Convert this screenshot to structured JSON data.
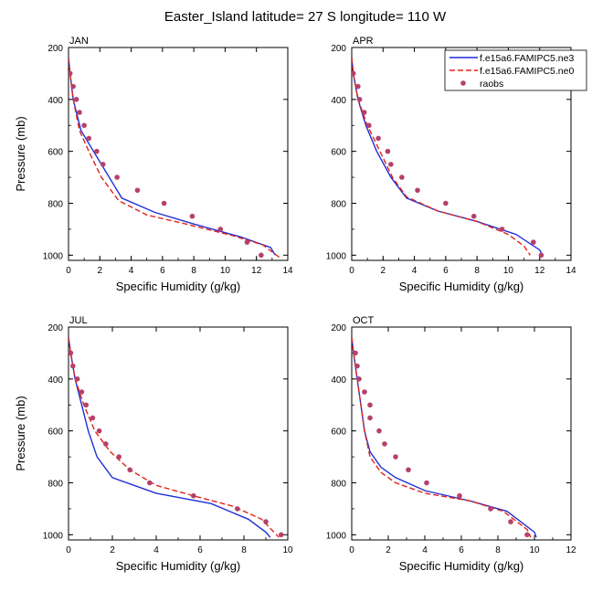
{
  "title": "Easter_Island  latitude= 27 S longitude= 110 W",
  "legend": {
    "entries": [
      {
        "label": "f.e15a6.FAMIPC5.ne3",
        "style": "line",
        "color": "#1f2fd6",
        "dash": "solid"
      },
      {
        "label": "f.e15a6.FAMIPC5.ne0",
        "style": "line",
        "color": "#e2231a",
        "dash": "dashed"
      },
      {
        "label": "raobs",
        "style": "marker",
        "color": "#b5406b"
      }
    ]
  },
  "chart_data": [
    {
      "type": "line",
      "panel": "JAN",
      "xlabel": "Specific Humidity (g/kg)",
      "ylabel": "Pressure (mb)",
      "xlim": [
        0,
        14
      ],
      "ylim": [
        1000,
        200
      ],
      "xticks": [
        0,
        2,
        4,
        6,
        8,
        10,
        12,
        14
      ],
      "yticks": [
        200,
        400,
        600,
        800,
        1000
      ],
      "series": [
        {
          "name": "f.e15a6.FAMIPC5.ne3",
          "points": [
            [
              0.0,
              240
            ],
            [
              0.1,
              300
            ],
            [
              0.3,
              400
            ],
            [
              0.8,
              520
            ],
            [
              1.6,
              600
            ],
            [
              2.4,
              680
            ],
            [
              3.4,
              780
            ],
            [
              5.5,
              835
            ],
            [
              8.0,
              880
            ],
            [
              11.0,
              930
            ],
            [
              12.9,
              970
            ],
            [
              13.2,
              1000
            ]
          ]
        },
        {
          "name": "f.e15a6.FAMIPC5.ne0",
          "points": [
            [
              0.0,
              240
            ],
            [
              0.1,
              300
            ],
            [
              0.3,
              400
            ],
            [
              0.7,
              520
            ],
            [
              1.3,
              600
            ],
            [
              2.1,
              700
            ],
            [
              3.2,
              790
            ],
            [
              5.0,
              845
            ],
            [
              7.5,
              880
            ],
            [
              10.5,
              925
            ],
            [
              12.4,
              960
            ],
            [
              13.5,
              1010
            ]
          ]
        },
        {
          "name": "raobs",
          "points": [
            [
              0.1,
              300
            ],
            [
              0.3,
              350
            ],
            [
              0.5,
              400
            ],
            [
              0.7,
              450
            ],
            [
              1.0,
              500
            ],
            [
              1.3,
              550
            ],
            [
              1.8,
              600
            ],
            [
              2.2,
              650
            ],
            [
              3.1,
              700
            ],
            [
              4.4,
              750
            ],
            [
              6.1,
              800
            ],
            [
              7.9,
              850
            ],
            [
              9.7,
              900
            ],
            [
              11.4,
              950
            ],
            [
              12.3,
              1000
            ]
          ]
        }
      ]
    },
    {
      "type": "line",
      "panel": "APR",
      "xlabel": "Specific Humidity (g/kg)",
      "ylabel": "",
      "xlim": [
        0,
        14
      ],
      "ylim": [
        1000,
        200
      ],
      "xticks": [
        0,
        2,
        4,
        6,
        8,
        10,
        12,
        14
      ],
      "yticks": [
        200,
        400,
        600,
        800,
        1000
      ],
      "series": [
        {
          "name": "f.e15a6.FAMIPC5.ne3",
          "points": [
            [
              0.0,
              240
            ],
            [
              0.1,
              300
            ],
            [
              0.4,
              400
            ],
            [
              0.9,
              500
            ],
            [
              1.6,
              600
            ],
            [
              2.5,
              700
            ],
            [
              3.5,
              780
            ],
            [
              5.5,
              830
            ],
            [
              8.0,
              870
            ],
            [
              10.5,
              920
            ],
            [
              12.0,
              980
            ],
            [
              12.2,
              1000
            ]
          ]
        },
        {
          "name": "f.e15a6.FAMIPC5.ne0",
          "points": [
            [
              0.0,
              240
            ],
            [
              0.1,
              300
            ],
            [
              0.4,
              400
            ],
            [
              1.0,
              500
            ],
            [
              1.8,
              600
            ],
            [
              2.6,
              700
            ],
            [
              3.5,
              775
            ],
            [
              5.5,
              830
            ],
            [
              8.0,
              870
            ],
            [
              10.0,
              920
            ],
            [
              11.0,
              965
            ],
            [
              11.4,
              1000
            ]
          ]
        },
        {
          "name": "raobs",
          "points": [
            [
              0.1,
              300
            ],
            [
              0.4,
              350
            ],
            [
              0.5,
              400
            ],
            [
              0.8,
              450
            ],
            [
              1.1,
              500
            ],
            [
              1.7,
              550
            ],
            [
              2.3,
              600
            ],
            [
              2.5,
              650
            ],
            [
              3.2,
              700
            ],
            [
              4.2,
              750
            ],
            [
              6.0,
              800
            ],
            [
              7.8,
              850
            ],
            [
              9.6,
              900
            ],
            [
              11.6,
              950
            ],
            [
              12.1,
              1000
            ]
          ]
        }
      ]
    },
    {
      "type": "line",
      "panel": "JUL",
      "xlabel": "Specific Humidity (g/kg)",
      "ylabel": "Pressure (mb)",
      "xlim": [
        0,
        10
      ],
      "ylim": [
        1000,
        200
      ],
      "xticks": [
        0,
        2,
        4,
        6,
        8,
        10
      ],
      "yticks": [
        200,
        400,
        600,
        800,
        1000
      ],
      "series": [
        {
          "name": "f.e15a6.FAMIPC5.ne3",
          "points": [
            [
              0.0,
              240
            ],
            [
              0.1,
              300
            ],
            [
              0.3,
              400
            ],
            [
              0.6,
              500
            ],
            [
              0.9,
              600
            ],
            [
              1.3,
              700
            ],
            [
              2.0,
              780
            ],
            [
              4.0,
              840
            ],
            [
              6.5,
              880
            ],
            [
              8.2,
              940
            ],
            [
              9.0,
              990
            ],
            [
              9.2,
              1010
            ]
          ]
        },
        {
          "name": "f.e15a6.FAMIPC5.ne0",
          "points": [
            [
              0.0,
              240
            ],
            [
              0.1,
              300
            ],
            [
              0.3,
              400
            ],
            [
              0.7,
              500
            ],
            [
              1.2,
              600
            ],
            [
              1.9,
              680
            ],
            [
              2.8,
              750
            ],
            [
              4.0,
              810
            ],
            [
              5.7,
              850
            ],
            [
              7.5,
              890
            ],
            [
              8.8,
              940
            ],
            [
              9.6,
              1010
            ]
          ]
        },
        {
          "name": "raobs",
          "points": [
            [
              0.1,
              300
            ],
            [
              0.2,
              350
            ],
            [
              0.4,
              400
            ],
            [
              0.6,
              450
            ],
            [
              0.8,
              500
            ],
            [
              1.1,
              550
            ],
            [
              1.4,
              600
            ],
            [
              1.7,
              650
            ],
            [
              2.3,
              700
            ],
            [
              2.8,
              750
            ],
            [
              3.7,
              800
            ],
            [
              5.7,
              850
            ],
            [
              7.7,
              900
            ],
            [
              9.0,
              950
            ],
            [
              9.7,
              1000
            ]
          ]
        }
      ]
    },
    {
      "type": "line",
      "panel": "OCT",
      "xlabel": "Specific Humidity (g/kg)",
      "ylabel": "",
      "xlim": [
        0,
        12
      ],
      "ylim": [
        1000,
        200
      ],
      "xticks": [
        0,
        2,
        4,
        6,
        8,
        10,
        12
      ],
      "yticks": [
        200,
        400,
        600,
        800,
        1000
      ],
      "series": [
        {
          "name": "f.e15a6.FAMIPC5.ne3",
          "points": [
            [
              0.0,
              240
            ],
            [
              0.1,
              300
            ],
            [
              0.3,
              400
            ],
            [
              0.5,
              500
            ],
            [
              0.7,
              600
            ],
            [
              1.0,
              680
            ],
            [
              1.6,
              740
            ],
            [
              2.4,
              780
            ],
            [
              4.0,
              830
            ],
            [
              6.5,
              870
            ],
            [
              8.5,
              910
            ],
            [
              10.0,
              990
            ],
            [
              10.1,
              1010
            ]
          ]
        },
        {
          "name": "f.e15a6.FAMIPC5.ne0",
          "points": [
            [
              0.0,
              240
            ],
            [
              0.1,
              300
            ],
            [
              0.3,
              400
            ],
            [
              0.5,
              500
            ],
            [
              0.7,
              600
            ],
            [
              1.0,
              700
            ],
            [
              1.6,
              760
            ],
            [
              2.4,
              800
            ],
            [
              4.0,
              840
            ],
            [
              6.5,
              870
            ],
            [
              8.3,
              910
            ],
            [
              9.6,
              980
            ],
            [
              9.8,
              1010
            ]
          ]
        },
        {
          "name": "raobs",
          "points": [
            [
              0.2,
              300
            ],
            [
              0.3,
              350
            ],
            [
              0.4,
              400
            ],
            [
              0.7,
              450
            ],
            [
              1.0,
              500
            ],
            [
              1.0,
              550
            ],
            [
              1.5,
              600
            ],
            [
              1.8,
              650
            ],
            [
              2.4,
              700
            ],
            [
              3.1,
              750
            ],
            [
              4.1,
              800
            ],
            [
              5.9,
              850
            ],
            [
              7.6,
              900
            ],
            [
              8.7,
              950
            ],
            [
              9.6,
              1000
            ]
          ]
        }
      ]
    }
  ]
}
